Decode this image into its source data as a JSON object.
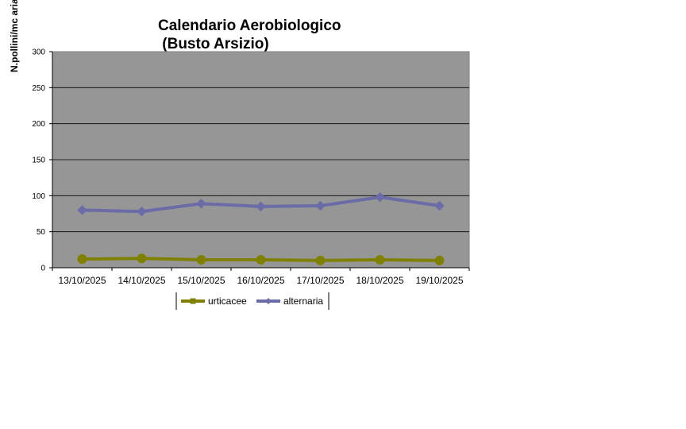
{
  "chart_data": {
    "type": "line",
    "title_line1": "Calendario Aerobiologico",
    "title_line2": " (Busto Arsizio)",
    "ylabel": "N.pollini/mc aria",
    "xlabel": "",
    "ylim": [
      0,
      300
    ],
    "yticks": [
      0,
      50,
      100,
      150,
      200,
      250,
      300
    ],
    "grid": true,
    "legend_position": "bottom",
    "categories": [
      "13/10/2025",
      "14/10/2025",
      "15/10/2025",
      "16/10/2025",
      "17/10/2025",
      "18/10/2025",
      "19/10/2025"
    ],
    "series": [
      {
        "name": "urticacee",
        "color": "#808000",
        "marker": "circle",
        "values": [
          12,
          13,
          11,
          11,
          10,
          11,
          10
        ]
      },
      {
        "name": "alternaria",
        "color": "#6B6BA8",
        "marker": "diamond",
        "values": [
          80,
          78,
          89,
          85,
          86,
          98,
          86
        ]
      }
    ],
    "plot_background": "#969696"
  }
}
